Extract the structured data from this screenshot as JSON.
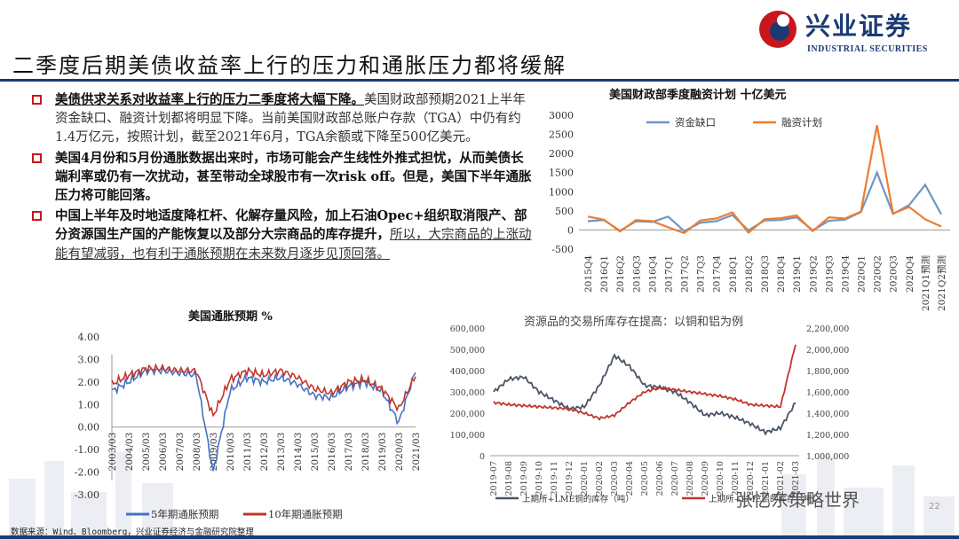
{
  "header": {
    "title": "二季度后期美债收益率上行的压力和通胀压力都将缓解",
    "logo_cn": "兴业证券",
    "logo_en": "INDUSTRIAL SECURITIES"
  },
  "bullets": {
    "b1_lead": "美债供求关系对收益率上行的压力二季度将大幅下降。",
    "b1_body": "美国财政部预期2021上半年资金缺口、融资计划都将明显下降。当前美国财政部总账户存款（TGA）中仍有约1.4万亿元，按照计划，截至2021年6月，TGA余额或下降至500亿美元。",
    "b2": "美国4月份和5月份通胀数据出来时，市场可能会产生线性外推式担忧，从而美债长端利率或仍有一次扰动，甚至带动全球股市有一次risk off。但是，美国下半年通胀压力将可能回落。",
    "b3_head": "中国上半年及时地适度降杠杆、化解存量风险，加上石油Opec+组织取消限产、部分资源国生产国的产能恢复以及部分大宗商品的库存提升，",
    "b3_tail": "所以，大宗商品的上涨动能有望减弱，也有利于通胀预期在未来数月逐步见顶回落。"
  },
  "footer": {
    "source": "数据来源：Wind、Bloomberg，兴业证券经济与金融研究院整理",
    "watermark": "张忆东策略世界",
    "page": "22"
  },
  "colors": {
    "navy": "#1b3a73",
    "red": "#c8161d",
    "blue": "#4472c4",
    "orange": "#ed7d31",
    "steel": "#6f95c6",
    "lineRed": "#c0362c",
    "dark": "#4a5467"
  },
  "chart_data": [
    {
      "id": "fiscal",
      "type": "line",
      "title": "美国财政部季度融资计划 十亿美元",
      "x": [
        "2015Q4",
        "2016Q1",
        "2016Q2",
        "2016Q3",
        "2016Q4",
        "2017Q1",
        "2017Q2",
        "2017Q3",
        "2017Q4",
        "2018Q1",
        "2018Q2",
        "2018Q3",
        "2018Q4",
        "2019Q1",
        "2019Q2",
        "2019Q3",
        "2019Q4",
        "2020Q1",
        "2020Q2",
        "2020Q3",
        "2020Q4",
        "2021Q1预测",
        "2021Q2预测"
      ],
      "ylim": [
        -500,
        3000
      ],
      "yticks": [
        -500,
        0,
        500,
        1000,
        1500,
        2000,
        2500,
        3000
      ],
      "series": [
        {
          "name": "资金缺口",
          "values": [
            230,
            260,
            -20,
            230,
            210,
            350,
            -30,
            190,
            230,
            390,
            -10,
            250,
            260,
            330,
            -10,
            240,
            270,
            470,
            1500,
            420,
            650,
            1180,
            410
          ]
        },
        {
          "name": "融资计划",
          "values": [
            350,
            270,
            -40,
            260,
            230,
            70,
            -80,
            250,
            300,
            460,
            -70,
            280,
            310,
            380,
            -30,
            330,
            300,
            480,
            2740,
            430,
            600,
            280,
            90
          ]
        }
      ],
      "legend": "top"
    },
    {
      "id": "inflation",
      "type": "line",
      "title": "美国通胀预期 %",
      "xticks": [
        "2003/03",
        "2004/03",
        "2005/03",
        "2006/03",
        "2007/03",
        "2008/03",
        "2009/03",
        "2010/03",
        "2011/03",
        "2012/03",
        "2013/03",
        "2014/03",
        "2015/03",
        "2016/03",
        "2017/03",
        "2018/03",
        "2019/03",
        "2020/03",
        "2021/03"
      ],
      "ylim": [
        -3.0,
        4.0
      ],
      "yticks": [
        "4.00",
        "3.00",
        "2.00",
        "1.00",
        "0.00",
        "-1.00",
        "-2.00",
        "-3.00"
      ],
      "series": [
        {
          "name": "5年期通胀预期",
          "values": [
            1.6,
            2.0,
            2.5,
            2.5,
            2.4,
            2.3,
            -2.0,
            1.6,
            2.2,
            2.0,
            2.2,
            1.9,
            1.4,
            1.3,
            1.8,
            2.0,
            1.6,
            0.2,
            2.5
          ]
        },
        {
          "name": "10年期通胀预期",
          "values": [
            1.9,
            2.3,
            2.6,
            2.6,
            2.5,
            2.5,
            0.5,
            2.1,
            2.5,
            2.3,
            2.5,
            2.2,
            1.7,
            1.5,
            2.0,
            2.1,
            1.7,
            0.8,
            2.3
          ]
        }
      ],
      "legend": "bottom"
    },
    {
      "id": "inventory",
      "type": "line",
      "title": "资源品的交易所库存在提高：以铜和铝为例",
      "xticks": [
        "2019-07",
        "2019-08",
        "2019-09",
        "2019-10",
        "2019-11",
        "2019-12",
        "2020-01",
        "2020-02",
        "2020-03",
        "2020-04",
        "2020-05",
        "2020-06",
        "2020-07",
        "2020-08",
        "2020-09",
        "2020-10",
        "2020-11",
        "2020-12",
        "2021-01",
        "2021-02",
        "2021-03"
      ],
      "ylim_left": [
        0,
        600000
      ],
      "yticks_left": [
        "600,000",
        "500,000",
        "400,000",
        "300,000",
        "200,000",
        "100,000",
        "0"
      ],
      "ylim_right": [
        1000000,
        2200000
      ],
      "yticks_right": [
        "2,200,000",
        "2,000,000",
        "1,800,000",
        "1,600,000",
        "1,400,000",
        "1,200,000",
        "1,000,000"
      ],
      "series": [
        {
          "name": "上期所+LME铜的库存（吨）",
          "axis": "left",
          "values": [
            300000,
            360000,
            370000,
            300000,
            260000,
            220000,
            230000,
            330000,
            470000,
            420000,
            330000,
            320000,
            300000,
            250000,
            190000,
            200000,
            180000,
            150000,
            110000,
            130000,
            250000
          ]
        },
        {
          "name": "上期所+LME铝的库存（吨）",
          "axis": "right",
          "values": [
            1500000,
            1480000,
            1470000,
            1460000,
            1450000,
            1440000,
            1400000,
            1350000,
            1380000,
            1500000,
            1600000,
            1640000,
            1620000,
            1600000,
            1580000,
            1560000,
            1530000,
            1480000,
            1470000,
            1460000,
            2050000
          ]
        }
      ],
      "legend": "bottom"
    }
  ]
}
